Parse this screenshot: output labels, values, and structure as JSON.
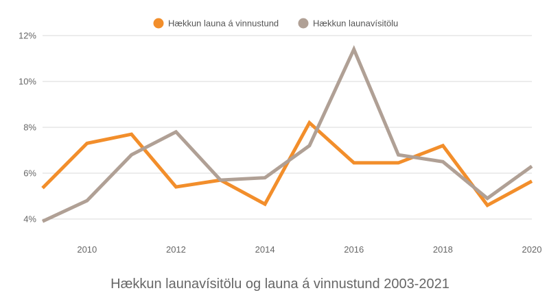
{
  "chart_data": {
    "type": "line",
    "title": "Hækkun launavísitölu og launa á vinnustund 2003-2021",
    "xlabel": "",
    "ylabel": "",
    "x": [
      2009,
      2010,
      2011,
      2012,
      2013,
      2014,
      2015,
      2016,
      2017,
      2018,
      2019,
      2020
    ],
    "x_ticks": [
      2010,
      2012,
      2014,
      2016,
      2018,
      2020
    ],
    "x_tick_labels": [
      "2010",
      "2012",
      "2014",
      "2016",
      "2018",
      "2020"
    ],
    "xlim": [
      2009,
      2020
    ],
    "ylim": [
      4,
      12
    ],
    "y_ticks": [
      4,
      6,
      8,
      10,
      12
    ],
    "y_tick_labels": [
      "4%",
      "6%",
      "8%",
      "10%",
      "12%"
    ],
    "grid": "horizontal",
    "legend_position": "top",
    "series": [
      {
        "name": "Hækkun launa á vinnustund",
        "color": "#F28E2B",
        "values": [
          5.35,
          7.3,
          7.7,
          5.4,
          5.7,
          4.65,
          8.2,
          6.45,
          6.45,
          7.2,
          4.6,
          5.65
        ]
      },
      {
        "name": "Hækkun launavísitölu",
        "color": "#B0A095",
        "values": [
          3.9,
          4.8,
          6.8,
          7.8,
          5.7,
          5.8,
          7.2,
          11.4,
          6.8,
          6.5,
          4.9,
          6.3
        ]
      }
    ]
  }
}
